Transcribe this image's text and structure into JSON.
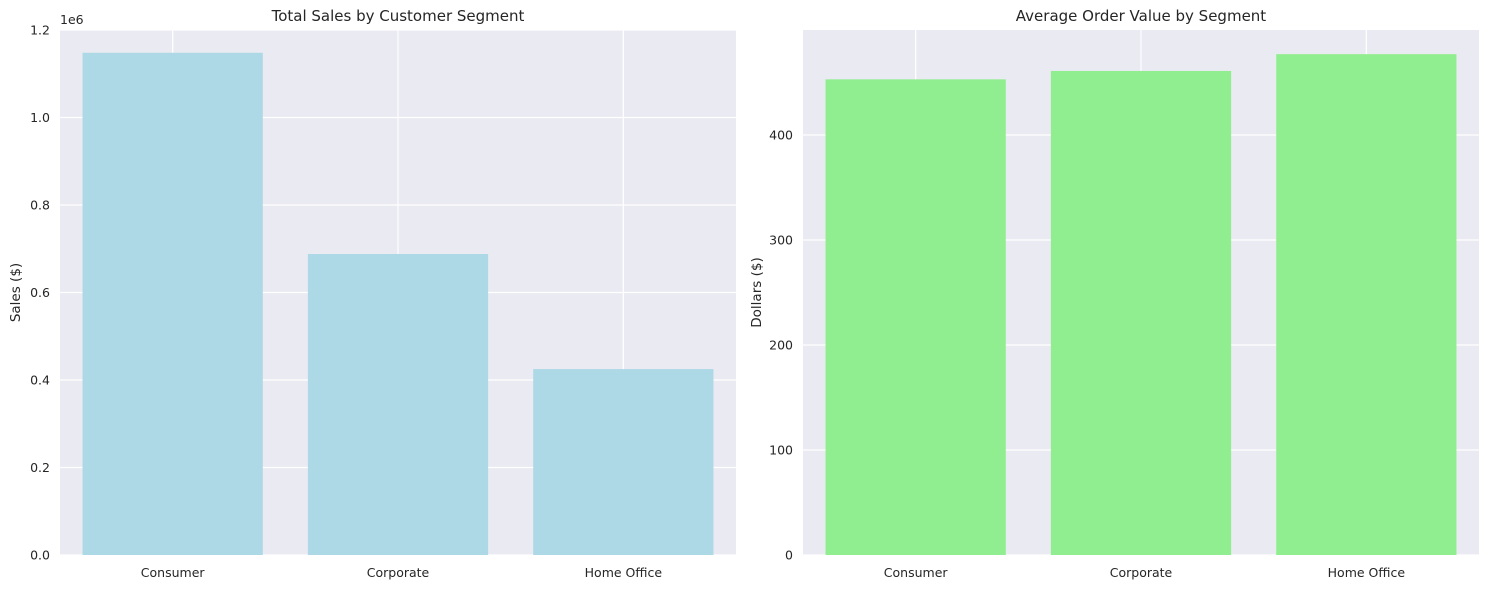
{
  "chart_data": [
    {
      "type": "bar",
      "title": "Total Sales by Customer Segment",
      "xlabel": "",
      "ylabel": "Sales ($)",
      "categories": [
        "Consumer",
        "Corporate",
        "Home Office"
      ],
      "values": [
        1148000,
        688000,
        425000
      ],
      "ylim": [
        0,
        1200000
      ],
      "yscale_label": "1e6",
      "yticks": [
        0,
        200000,
        400000,
        600000,
        800000,
        1000000,
        1200000
      ],
      "ytick_labels": [
        "0.0",
        "0.2",
        "0.4",
        "0.6",
        "0.8",
        "1.0",
        "1.2"
      ],
      "bar_color": "#ADD8E6",
      "background": "#EAEAF2",
      "grid": true
    },
    {
      "type": "bar",
      "title": "Average Order Value by Segment",
      "xlabel": "",
      "ylabel": "Dollars ($)",
      "categories": [
        "Consumer",
        "Corporate",
        "Home Office"
      ],
      "values": [
        453,
        461,
        477
      ],
      "ylim": [
        0,
        500
      ],
      "yticks": [
        0,
        100,
        200,
        300,
        400
      ],
      "ytick_labels": [
        "0",
        "100",
        "200",
        "300",
        "400"
      ],
      "bar_color": "#90EE90",
      "background": "#EAEAF2",
      "grid": true
    }
  ]
}
